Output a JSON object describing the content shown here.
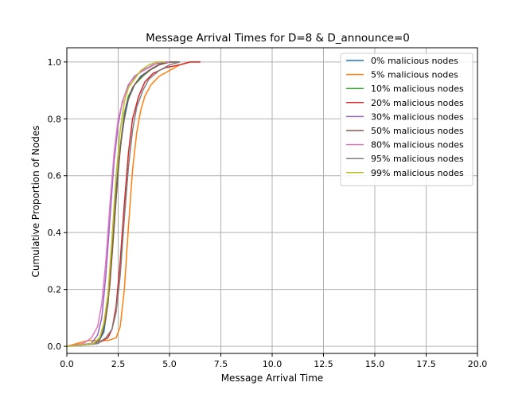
{
  "chart_data": {
    "type": "line",
    "title": "Message Arrival Times for D=8 & D_announce=0",
    "xlabel": "Message Arrival Time",
    "ylabel": "Cumulative Proportion of Nodes",
    "xlim": [
      0,
      20
    ],
    "ylim": [
      -0.025,
      1.05
    ],
    "x_ticks": [
      0,
      2.5,
      5,
      7.5,
      10,
      12.5,
      15,
      17.5,
      20
    ],
    "x_tick_labels": [
      "0.0",
      "2.5",
      "5.0",
      "7.5",
      "10.0",
      "12.5",
      "15.0",
      "17.5",
      "20.0"
    ],
    "y_ticks": [
      0,
      0.2,
      0.4,
      0.6,
      0.8,
      1.0
    ],
    "y_tick_labels": [
      "0.0",
      "0.2",
      "0.4",
      "0.6",
      "0.8",
      "1.0"
    ],
    "grid": true,
    "legend_position": "top-right",
    "series": [
      {
        "name": "0% malicious nodes",
        "color": "#1f77b4",
        "x": [
          0,
          1.5,
          1.8,
          2.0,
          2.2,
          2.4,
          2.6,
          2.8,
          3.0,
          3.3,
          3.6,
          4.0,
          4.5,
          5.0,
          5.5
        ],
        "y": [
          0,
          0.01,
          0.05,
          0.15,
          0.35,
          0.55,
          0.7,
          0.8,
          0.87,
          0.92,
          0.95,
          0.97,
          0.99,
          1.0,
          1.0
        ]
      },
      {
        "name": "5% malicious nodes",
        "color": "#ff7f0e",
        "x": [
          0,
          0.5,
          1.0,
          1.5,
          2.0,
          2.4,
          2.6,
          2.8,
          3.0,
          3.2,
          3.4,
          3.6,
          3.8,
          4.1,
          4.5,
          5.0,
          5.5,
          6.0,
          6.5
        ],
        "y": [
          0,
          0.01,
          0.02,
          0.02,
          0.02,
          0.03,
          0.07,
          0.2,
          0.42,
          0.62,
          0.75,
          0.83,
          0.88,
          0.92,
          0.95,
          0.97,
          0.99,
          1.0,
          1.0
        ]
      },
      {
        "name": "10% malicious nodes",
        "color": "#2ca02c",
        "x": [
          0,
          1.3,
          1.6,
          1.8,
          2.0,
          2.2,
          2.4,
          2.6,
          2.8,
          3.0,
          3.3,
          3.7,
          4.2,
          4.8,
          5.3
        ],
        "y": [
          0,
          0.01,
          0.03,
          0.07,
          0.15,
          0.32,
          0.52,
          0.7,
          0.82,
          0.88,
          0.92,
          0.95,
          0.98,
          1.0,
          1.0
        ]
      },
      {
        "name": "20% malicious nodes",
        "color": "#d62728",
        "x": [
          0,
          1.5,
          2.0,
          2.2,
          2.4,
          2.6,
          2.8,
          3.0,
          3.2,
          3.5,
          3.8,
          4.2,
          4.8,
          5.5,
          6.0,
          6.5
        ],
        "y": [
          0,
          0.01,
          0.03,
          0.06,
          0.14,
          0.3,
          0.5,
          0.68,
          0.8,
          0.88,
          0.93,
          0.96,
          0.98,
          0.99,
          1.0,
          1.0
        ]
      },
      {
        "name": "30% malicious nodes",
        "color": "#9467bd",
        "x": [
          0,
          1.2,
          1.5,
          1.7,
          1.9,
          2.1,
          2.3,
          2.5,
          2.7,
          3.0,
          3.3,
          3.7,
          4.2,
          4.8,
          5.2
        ],
        "y": [
          0,
          0.01,
          0.04,
          0.1,
          0.25,
          0.45,
          0.65,
          0.78,
          0.86,
          0.92,
          0.95,
          0.97,
          0.99,
          1.0,
          1.0
        ]
      },
      {
        "name": "50% malicious nodes",
        "color": "#8c564b",
        "x": [
          0,
          1.4,
          1.7,
          1.9,
          2.1,
          2.3,
          2.5,
          2.7,
          2.9,
          3.2,
          3.5,
          4.0,
          4.5,
          5.0,
          5.5
        ],
        "y": [
          0,
          0.01,
          0.04,
          0.1,
          0.22,
          0.42,
          0.62,
          0.76,
          0.85,
          0.91,
          0.94,
          0.97,
          0.99,
          1.0,
          1.0
        ]
      },
      {
        "name": "80% malicious nodes",
        "color": "#e377c2",
        "x": [
          0,
          0.8,
          1.2,
          1.5,
          1.7,
          1.9,
          2.1,
          2.3,
          2.5,
          2.8,
          3.1,
          3.5,
          4.0,
          4.5,
          5.0
        ],
        "y": [
          0,
          0.01,
          0.03,
          0.07,
          0.15,
          0.3,
          0.5,
          0.68,
          0.8,
          0.88,
          0.93,
          0.96,
          0.98,
          1.0,
          1.0
        ]
      },
      {
        "name": "95% malicious nodes",
        "color": "#7f7f7f",
        "x": [
          0,
          1.5,
          1.9,
          2.2,
          2.4,
          2.6,
          2.8,
          3.0,
          3.2,
          3.4,
          3.7,
          4.0,
          4.5,
          5.0,
          5.5
        ],
        "y": [
          0,
          0.01,
          0.03,
          0.06,
          0.12,
          0.25,
          0.45,
          0.63,
          0.76,
          0.84,
          0.9,
          0.94,
          0.97,
          0.99,
          1.0
        ]
      },
      {
        "name": "99% malicious nodes",
        "color": "#bcbd22",
        "x": [
          0,
          1.3,
          1.6,
          1.8,
          2.0,
          2.2,
          2.4,
          2.6,
          2.8,
          3.0,
          3.3,
          3.6,
          4.0,
          4.4,
          4.8
        ],
        "y": [
          0,
          0.01,
          0.03,
          0.08,
          0.18,
          0.38,
          0.6,
          0.76,
          0.86,
          0.91,
          0.94,
          0.97,
          0.99,
          1.0,
          1.0
        ]
      }
    ]
  }
}
